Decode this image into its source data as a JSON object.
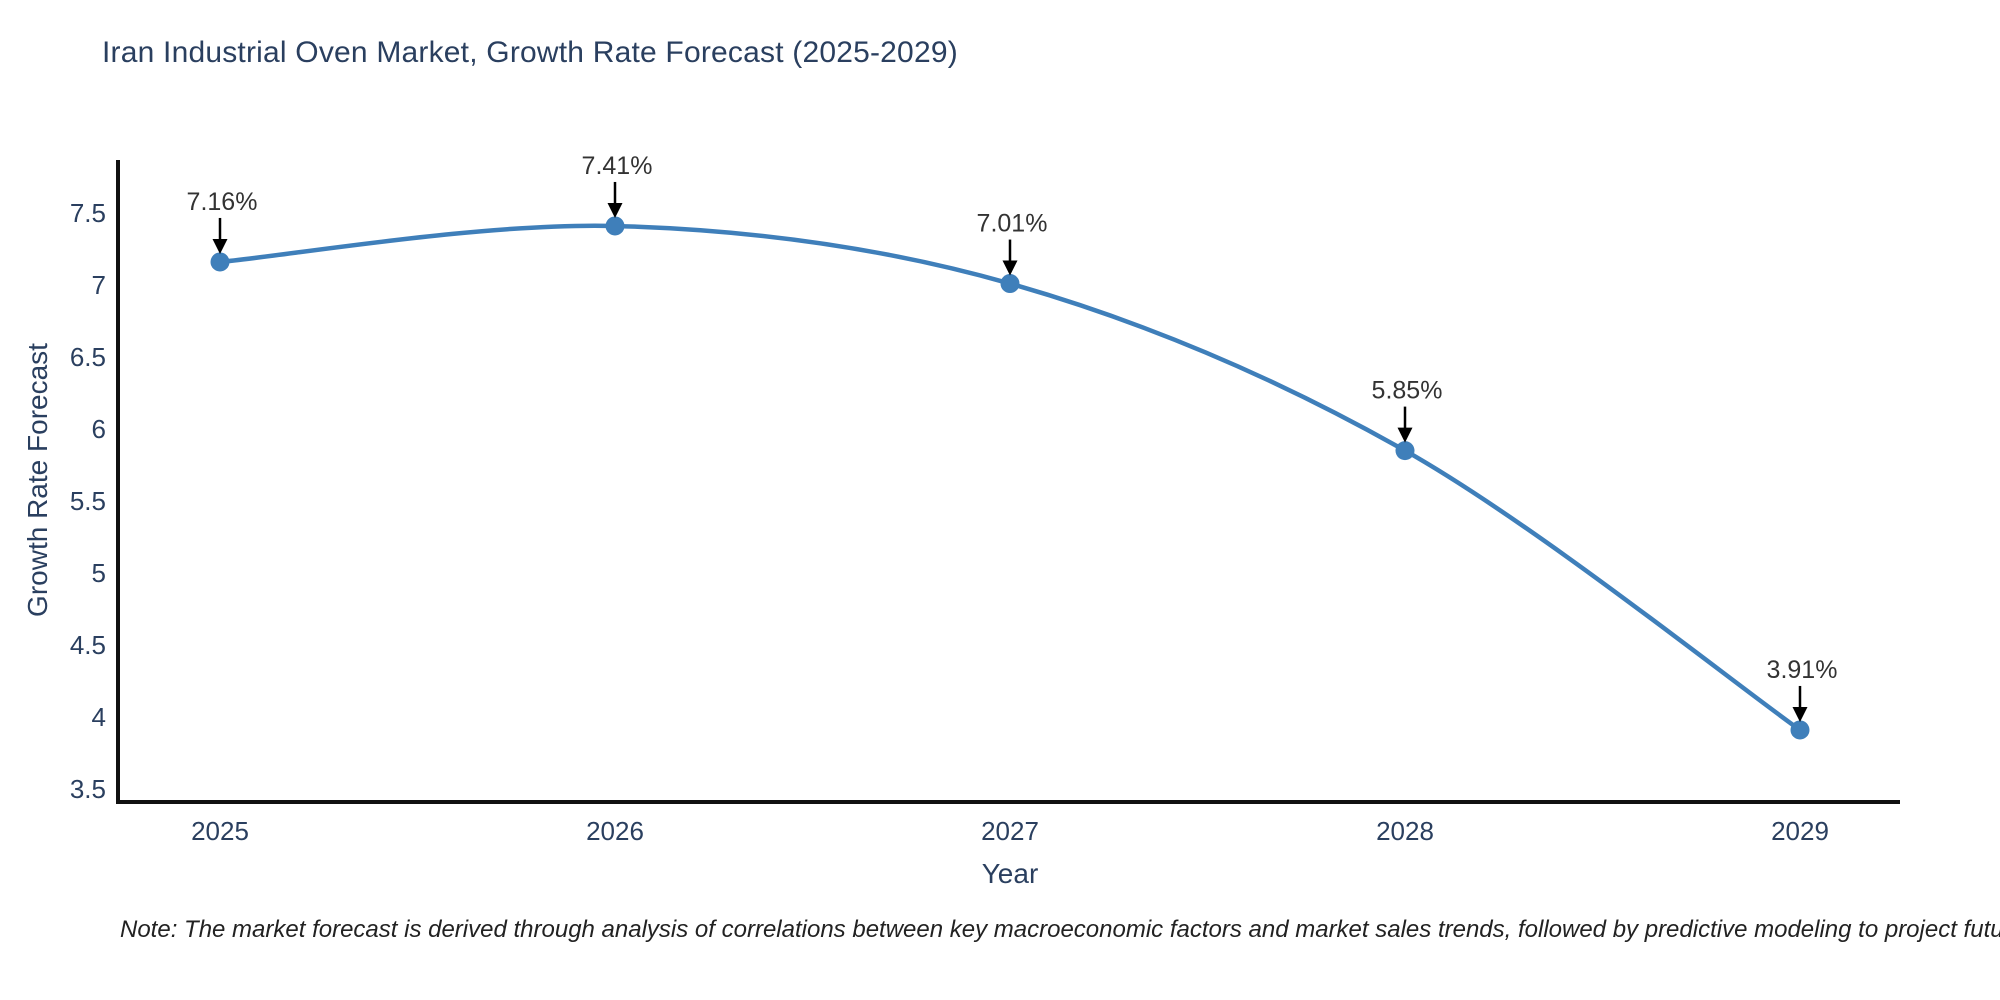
{
  "page": {
    "title": "Iran Industrial Oven Market, Growth Rate Forecast (2025-2029)",
    "note": "Note: The market forecast is derived through analysis of correlations between key macroeconomic factors and market sales trends, followed by predictive modeling to project future sales"
  },
  "chart_data": {
    "type": "line",
    "title": "Iran Industrial Oven Market, Growth Rate Forecast (2025-2029)",
    "xlabel": "Year",
    "ylabel": "Growth Rate Forecast",
    "x": [
      2025,
      2026,
      2027,
      2028,
      2029
    ],
    "series": [
      {
        "name": "Growth Rate Forecast",
        "values": [
          7.16,
          7.41,
          7.01,
          5.85,
          3.91
        ],
        "point_labels": [
          "7.16%",
          "7.41%",
          "7.01%",
          "5.85%",
          "3.91%"
        ]
      }
    ],
    "x_tick_labels": [
      "2025",
      "2026",
      "2027",
      "2028",
      "2029"
    ],
    "y_ticks": [
      3.5,
      4,
      4.5,
      5,
      5.5,
      6,
      6.5,
      7,
      7.5
    ],
    "y_tick_labels": [
      "3.5",
      "4",
      "4.5",
      "5",
      "5.5",
      "6",
      "6.5",
      "7",
      "7.5"
    ],
    "ylim": [
      3.42,
      7.87
    ],
    "grid": false,
    "legend_position": "none",
    "line_shape": "spline",
    "annotation_style": "arrow-down-to-point",
    "colors": {
      "line": "#3f7fba",
      "marker": "#3f7fba",
      "axis_line": "#111111",
      "tick_label": "#2a3f5f",
      "title": "#2a3f5f",
      "annotation_text": "#333333",
      "annotation_arrow": "#000000",
      "note_text": "#222222",
      "background": "#ffffff"
    }
  }
}
